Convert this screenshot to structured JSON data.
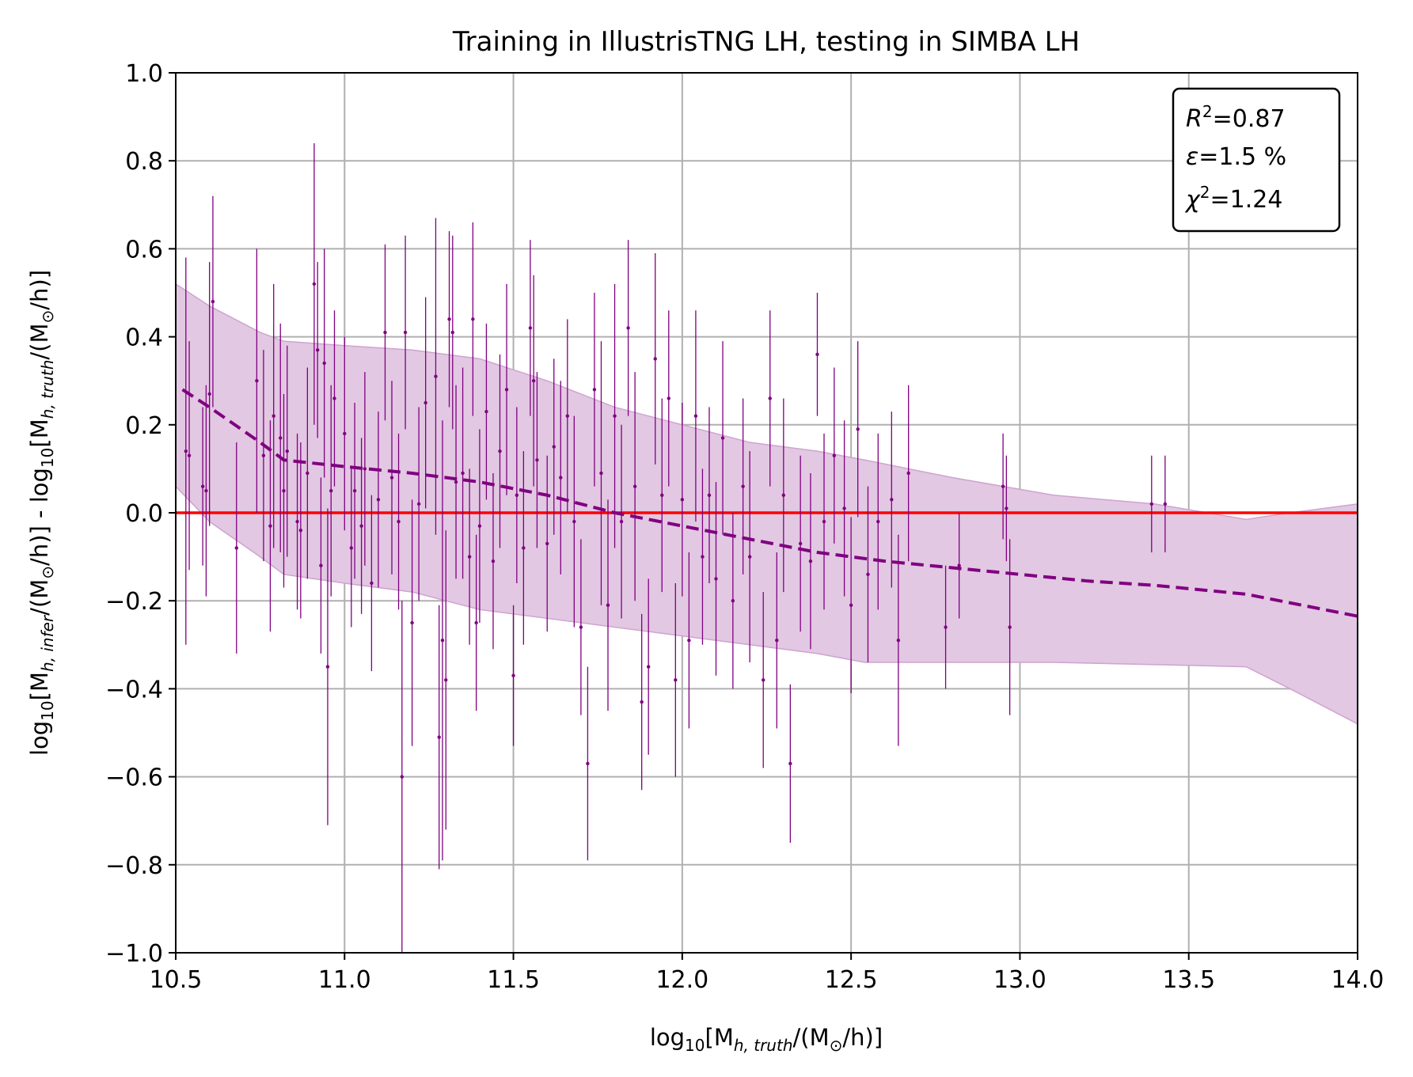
{
  "chart_data": {
    "type": "scatter",
    "title": "Training in IllustrisTNG LH, testing in SIMBA LH",
    "xlabel": {
      "prefix": "log",
      "sub": "10",
      "text": "[M",
      "sub2": "h, truth",
      "text2": "/(M",
      "sub3": "⊙",
      "text3": "/h)]"
    },
    "ylabel": {
      "part1": "log",
      "sub1": "10",
      "t1": "[M",
      "s1": "h, infer",
      "t2": "/(M",
      "s2": "⊙",
      "t3": "/h)] - log",
      "sub2": "10",
      "t4": "[M",
      "s3": "h, truth",
      "t5": "/(M",
      "s4": "⊙",
      "t6": "/h)]"
    },
    "xlim": [
      10.5,
      14.0
    ],
    "ylim": [
      -1.0,
      1.0
    ],
    "xticks": [
      "10.5",
      "11.0",
      "11.5",
      "12.0",
      "12.5",
      "13.0",
      "13.5",
      "14.0"
    ],
    "xtick_values": [
      10.5,
      11.0,
      11.5,
      12.0,
      12.5,
      13.0,
      13.5,
      14.0
    ],
    "yticks": [
      "1.0",
      "0.8",
      "0.6",
      "0.4",
      "0.2",
      "0.0",
      "−0.2",
      "−0.4",
      "−0.6",
      "−0.8",
      "−1.0"
    ],
    "ytick_values": [
      1.0,
      0.8,
      0.6,
      0.4,
      0.2,
      0.0,
      -0.2,
      -0.4,
      -0.6,
      -0.8,
      -1.0
    ],
    "grid": true,
    "stats": {
      "r2": "=0.87",
      "eps": "=1.5 %",
      "chi2": "=1.24"
    },
    "colors": {
      "points": "#800080",
      "mean_line": "#800080",
      "band": "#e2c8e2",
      "band_edge": "#cfa3cf",
      "zero_line": "#ff0000",
      "grid": "#b0b0b0"
    },
    "zero_line": 0.0,
    "mean_line": {
      "x": [
        10.52,
        10.6,
        10.75,
        10.82,
        11.0,
        11.2,
        11.4,
        11.6,
        11.8,
        12.0,
        12.2,
        12.4,
        12.6,
        12.8,
        13.0,
        13.2,
        13.4,
        13.67,
        14.0
      ],
      "y": [
        0.28,
        0.24,
        0.16,
        0.12,
        0.105,
        0.09,
        0.07,
        0.04,
        0.0,
        -0.03,
        -0.06,
        -0.09,
        -0.11,
        -0.125,
        -0.14,
        -0.155,
        -0.165,
        -0.185,
        -0.235
      ]
    },
    "band": {
      "x": [
        10.5,
        10.6,
        10.75,
        10.82,
        11.0,
        11.2,
        11.4,
        11.6,
        11.8,
        12.0,
        12.2,
        12.4,
        12.54,
        12.8,
        13.1,
        13.4,
        13.67,
        13.8,
        14.0
      ],
      "upper": [
        0.52,
        0.47,
        0.41,
        0.39,
        0.38,
        0.37,
        0.35,
        0.3,
        0.24,
        0.2,
        0.16,
        0.14,
        0.12,
        0.08,
        0.04,
        0.02,
        -0.015,
        0.0,
        0.02
      ],
      "lower": [
        0.06,
        -0.02,
        -0.1,
        -0.14,
        -0.16,
        -0.18,
        -0.22,
        -0.24,
        -0.26,
        -0.28,
        -0.3,
        -0.32,
        -0.34,
        -0.34,
        -0.34,
        -0.345,
        -0.35,
        -0.4,
        -0.48
      ]
    },
    "points": [
      [
        10.53,
        0.14,
        0.44
      ],
      [
        10.54,
        0.13,
        0.26
      ],
      [
        10.58,
        0.06,
        0.18
      ],
      [
        10.6,
        0.27,
        0.3
      ],
      [
        10.61,
        0.48,
        0.24
      ],
      [
        10.59,
        0.05,
        0.24
      ],
      [
        10.68,
        -0.08,
        0.24
      ],
      [
        10.74,
        0.3,
        0.3
      ],
      [
        10.76,
        0.13,
        0.24
      ],
      [
        10.78,
        -0.03,
        0.24
      ],
      [
        10.79,
        0.22,
        0.3
      ],
      [
        10.81,
        0.17,
        0.26
      ],
      [
        10.82,
        0.05,
        0.22
      ],
      [
        10.83,
        0.14,
        0.24
      ],
      [
        10.86,
        -0.02,
        0.2
      ],
      [
        10.87,
        -0.04,
        0.2
      ],
      [
        10.89,
        0.09,
        0.24
      ],
      [
        10.91,
        0.52,
        0.32
      ],
      [
        10.92,
        0.37,
        0.2
      ],
      [
        10.93,
        -0.12,
        0.2
      ],
      [
        10.94,
        0.34,
        0.26
      ],
      [
        10.95,
        -0.35,
        0.36
      ],
      [
        10.96,
        0.05,
        0.24
      ],
      [
        10.97,
        0.26,
        0.2
      ],
      [
        11.0,
        0.18,
        0.22
      ],
      [
        11.02,
        -0.08,
        0.18
      ],
      [
        11.03,
        0.05,
        0.2
      ],
      [
        11.05,
        -0.03,
        0.2
      ],
      [
        11.06,
        0.1,
        0.22
      ],
      [
        11.08,
        -0.16,
        0.2
      ],
      [
        11.1,
        0.03,
        0.2
      ],
      [
        11.12,
        0.41,
        0.2
      ],
      [
        11.14,
        0.08,
        0.22
      ],
      [
        11.16,
        -0.02,
        0.2
      ],
      [
        11.17,
        -0.6,
        0.4
      ],
      [
        11.18,
        0.41,
        0.22
      ],
      [
        11.2,
        -0.25,
        0.28
      ],
      [
        11.22,
        0.02,
        0.22
      ],
      [
        11.24,
        0.25,
        0.24
      ],
      [
        11.27,
        0.31,
        0.36
      ],
      [
        11.28,
        -0.51,
        0.3
      ],
      [
        11.29,
        -0.29,
        0.5
      ],
      [
        11.3,
        -0.38,
        0.34
      ],
      [
        11.31,
        0.44,
        0.2
      ],
      [
        11.32,
        0.41,
        0.22
      ],
      [
        11.33,
        0.07,
        0.22
      ],
      [
        11.35,
        0.09,
        0.24
      ],
      [
        11.37,
        -0.1,
        0.2
      ],
      [
        11.38,
        0.44,
        0.22
      ],
      [
        11.39,
        -0.25,
        0.2
      ],
      [
        11.4,
        -0.03,
        0.22
      ],
      [
        11.42,
        0.23,
        0.2
      ],
      [
        11.44,
        -0.11,
        0.2
      ],
      [
        11.46,
        0.14,
        0.22
      ],
      [
        11.48,
        0.28,
        0.24
      ],
      [
        11.5,
        -0.37,
        0.16
      ],
      [
        11.51,
        0.04,
        0.2
      ],
      [
        11.53,
        -0.08,
        0.22
      ],
      [
        11.55,
        0.42,
        0.2
      ],
      [
        11.56,
        0.3,
        0.24
      ],
      [
        11.57,
        0.12,
        0.2
      ],
      [
        11.6,
        -0.07,
        0.2
      ],
      [
        11.62,
        0.15,
        0.2
      ],
      [
        11.64,
        0.08,
        0.22
      ],
      [
        11.66,
        0.22,
        0.22
      ],
      [
        11.68,
        -0.02,
        0.24
      ],
      [
        11.7,
        -0.26,
        0.2
      ],
      [
        11.72,
        -0.57,
        0.22
      ],
      [
        11.74,
        0.28,
        0.22
      ],
      [
        11.76,
        0.09,
        0.3
      ],
      [
        11.78,
        -0.21,
        0.24
      ],
      [
        11.8,
        0.22,
        0.3
      ],
      [
        11.82,
        -0.02,
        0.22
      ],
      [
        11.84,
        0.42,
        0.2
      ],
      [
        11.86,
        0.06,
        0.26
      ],
      [
        11.88,
        -0.43,
        0.2
      ],
      [
        11.9,
        -0.35,
        0.2
      ],
      [
        11.92,
        0.35,
        0.24
      ],
      [
        11.94,
        0.04,
        0.22
      ],
      [
        11.96,
        0.26,
        0.2
      ],
      [
        11.98,
        -0.38,
        0.22
      ],
      [
        12.0,
        0.03,
        0.22
      ],
      [
        12.02,
        -0.29,
        0.2
      ],
      [
        12.04,
        0.22,
        0.24
      ],
      [
        12.06,
        -0.1,
        0.2
      ],
      [
        12.08,
        0.04,
        0.2
      ],
      [
        12.1,
        -0.15,
        0.22
      ],
      [
        12.12,
        0.17,
        0.22
      ],
      [
        12.15,
        -0.2,
        0.2
      ],
      [
        12.18,
        0.06,
        0.2
      ],
      [
        12.2,
        -0.1,
        0.24
      ],
      [
        12.24,
        -0.38,
        0.2
      ],
      [
        12.26,
        0.26,
        0.2
      ],
      [
        12.28,
        -0.29,
        0.2
      ],
      [
        12.3,
        0.04,
        0.22
      ],
      [
        12.32,
        -0.57,
        0.18
      ],
      [
        12.35,
        -0.07,
        0.2
      ],
      [
        12.38,
        -0.11,
        0.2
      ],
      [
        12.4,
        0.36,
        0.14
      ],
      [
        12.42,
        -0.02,
        0.2
      ],
      [
        12.45,
        0.13,
        0.2
      ],
      [
        12.48,
        0.01,
        0.2
      ],
      [
        12.5,
        -0.21,
        0.2
      ],
      [
        12.52,
        0.19,
        0.2
      ],
      [
        12.55,
        -0.14,
        0.2
      ],
      [
        12.58,
        -0.02,
        0.2
      ],
      [
        12.62,
        0.03,
        0.2
      ],
      [
        12.64,
        -0.29,
        0.24
      ],
      [
        12.67,
        0.09,
        0.2
      ],
      [
        12.78,
        -0.26,
        0.14
      ],
      [
        12.82,
        -0.12,
        0.12
      ],
      [
        12.95,
        0.06,
        0.12
      ],
      [
        12.96,
        0.01,
        0.12
      ],
      [
        12.97,
        -0.26,
        0.2
      ],
      [
        13.39,
        0.02,
        0.11
      ],
      [
        13.43,
        0.02,
        0.11
      ]
    ]
  }
}
